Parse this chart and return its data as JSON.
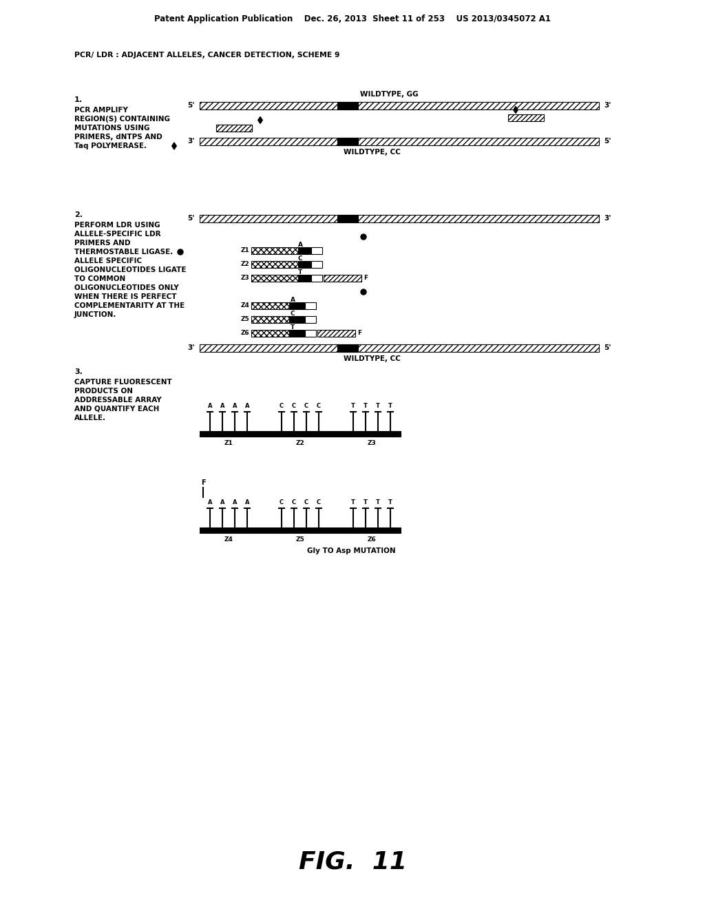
{
  "header": "Patent Application Publication    Dec. 26, 2013  Sheet 11 of 253    US 2013/0345072 A1",
  "scheme_title": "PCR/ LDR : ADJACENT ALLELES, CANCER DETECTION, SCHEME 9",
  "fig_label": "FIG.  11",
  "bg_color": "#ffffff",
  "text_color": "#000000",
  "sec1_lines": [
    "PCR AMPLIFY",
    "REGION(S) CONTAINING",
    "MUTATIONS USING",
    "PRIMERS, dNTPS AND",
    "Taq POLYMERASE."
  ],
  "sec2_lines": [
    "PERFORM LDR USING",
    "ALLELE-SPECIFIC LDR",
    "PRIMERS AND",
    "THERMOSTABLE LIGASE.",
    "ALLELE SPECIFIC",
    "OLIGONUCLEOTIDES LIGATE",
    "TO COMMON",
    "OLIGONUCLEOTIDES ONLY",
    "WHEN THERE IS PERFECT",
    "COMPLEMENTARITY AT THE",
    "JUNCTION."
  ],
  "sec3_lines": [
    "CAPTURE FLUORESCENT",
    "PRODUCTS ON",
    "ADDRESSABLE ARRAY",
    "AND QUANTIFY EACH",
    "ALLELE."
  ],
  "wildtype_gg": "WILDTYPE, GG",
  "wildtype_cc": "WILDTYPE, CC",
  "gly_mutation": "Gly TO Asp MUTATION"
}
